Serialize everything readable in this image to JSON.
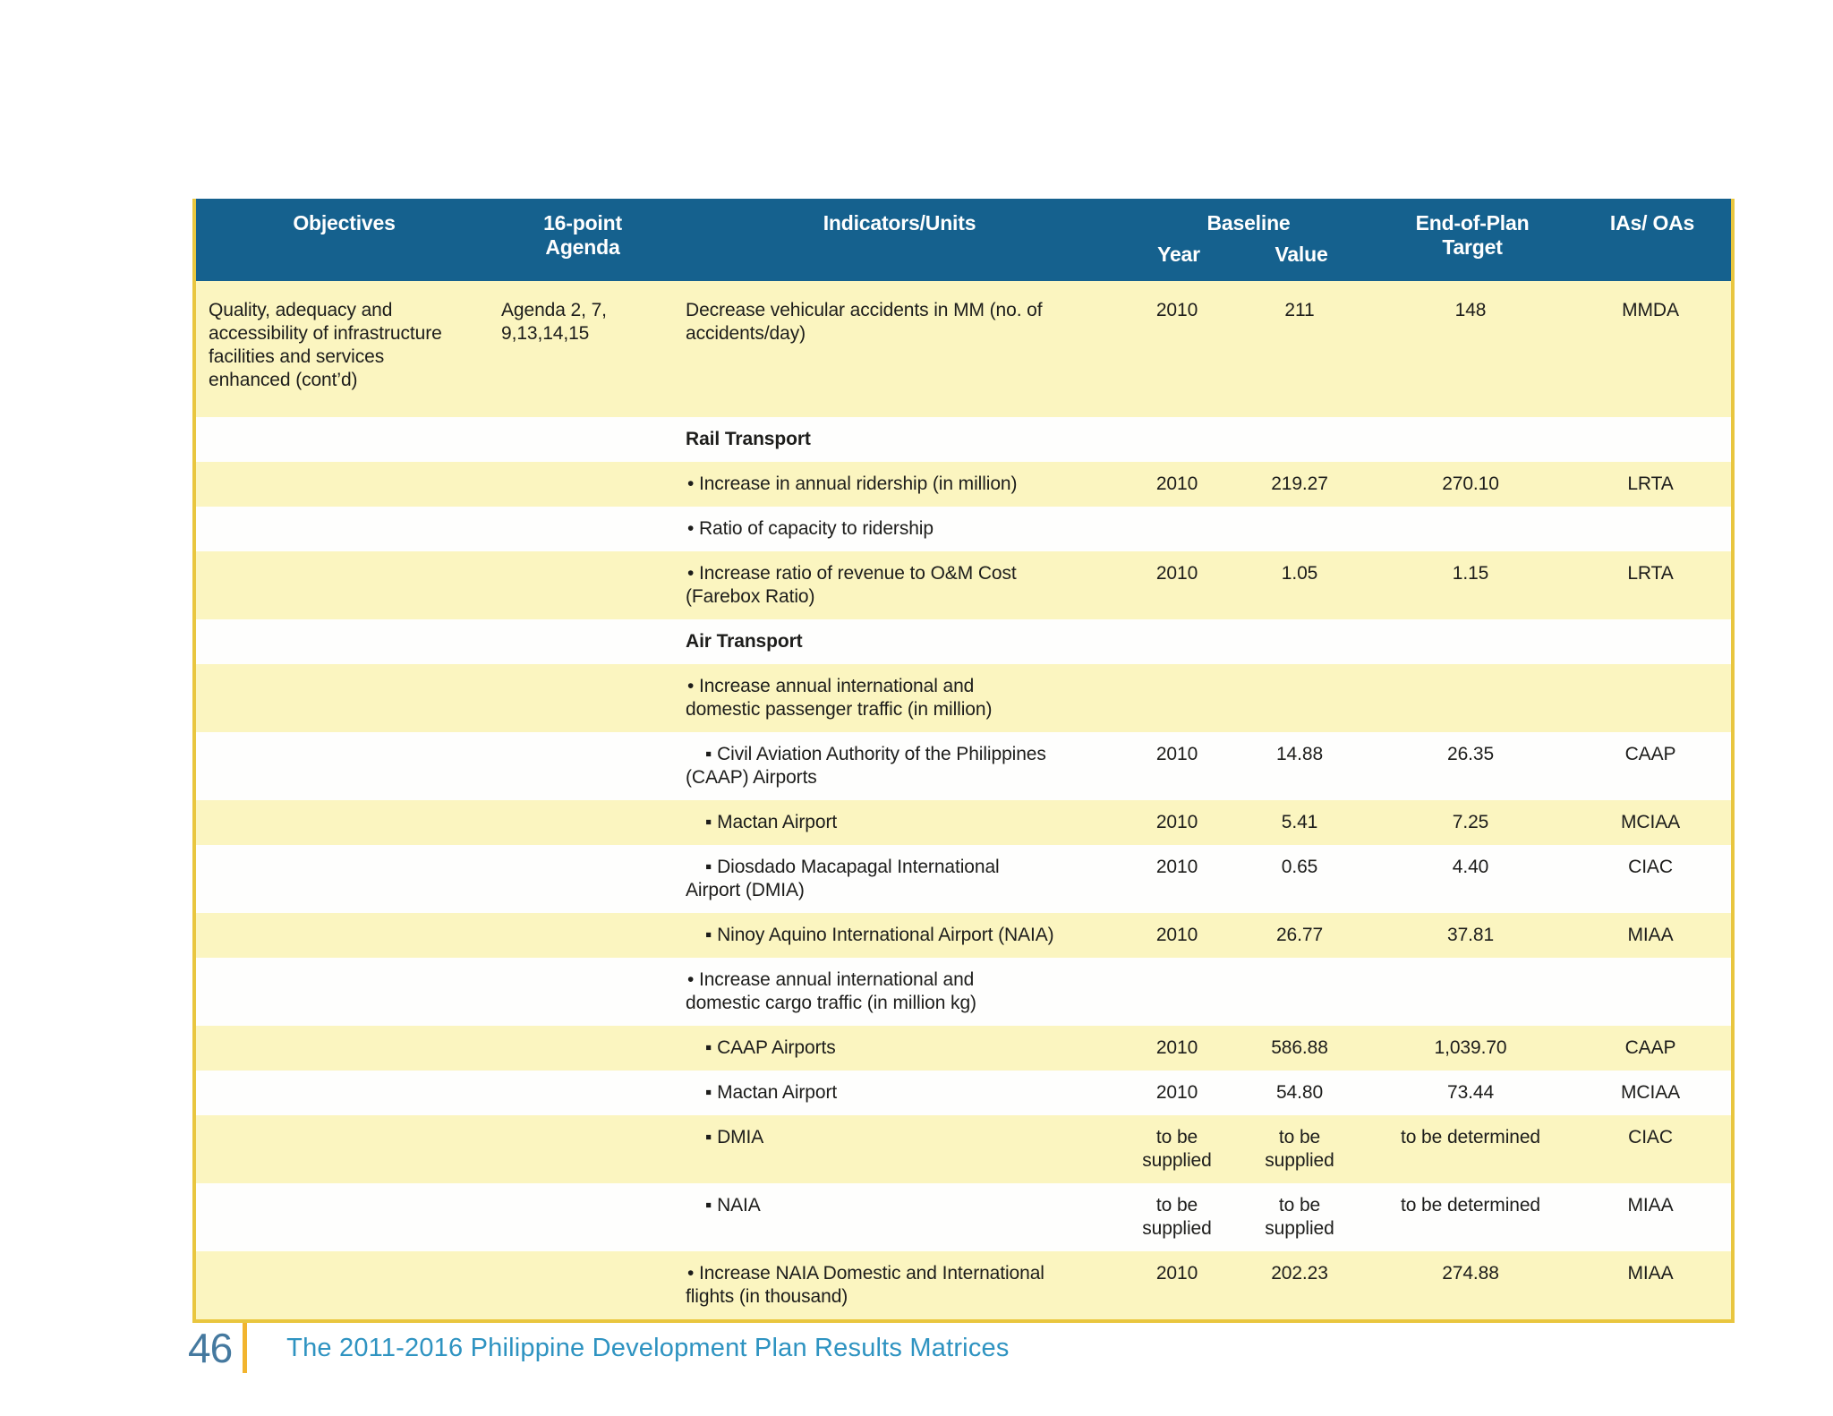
{
  "theme": {
    "header_blue": "#15618E",
    "row_yellow": "#FBF5C0",
    "row_white": "#FEFEFD",
    "border_gold": "#E9C63F",
    "ink": "#1D1D1B",
    "page_number_blue": "#45799F",
    "caption_blue": "#2E93C1",
    "divider_gold": "#F2B42E"
  },
  "footer": {
    "page_number": "46",
    "caption": "The 2011-2016 Philippine Development Plan Results Matrices"
  },
  "table": {
    "header": {
      "objectives": "Objectives",
      "agenda": "16-point\nAgenda",
      "indicators": "Indicators/Units",
      "baseline": "Baseline",
      "year": "Year",
      "value": "Value",
      "target": "End-of-Plan\nTarget",
      "ias": "IAs/ OAs"
    },
    "bullets": {
      "b1": "•",
      "b2": "▪"
    },
    "rows": [
      {
        "objectives": "Quality, adequacy and\naccessibility of infrastructure\nfacilities and services\nenhanced (cont’d)",
        "agenda": "Agenda 2, 7,\n9,13,14,15",
        "level": "plain",
        "indicator": "Decrease vehicular accidents in MM (no. of\naccidents/day)",
        "year": "2010",
        "value": "211",
        "target": "148",
        "ia": "MMDA"
      },
      {
        "level": "section",
        "indicator": "Rail Transport",
        "objectives": "",
        "agenda": "",
        "year": "",
        "value": "",
        "target": "",
        "ia": ""
      },
      {
        "level": "b1",
        "indicator": "Increase in annual ridership (in million)",
        "year": "2010",
        "value": "219.27",
        "target": "270.10",
        "ia": "LRTA"
      },
      {
        "level": "b1",
        "indicator": "Ratio of capacity to ridership",
        "year": "",
        "value": "",
        "target": "",
        "ia": ""
      },
      {
        "level": "b1",
        "indicator": "Increase ratio of revenue to O&M Cost\n(Farebox Ratio)",
        "year": "2010",
        "value": "1.05",
        "target": "1.15",
        "ia": "LRTA"
      },
      {
        "level": "section",
        "indicator": "Air Transport",
        "year": "",
        "value": "",
        "target": "",
        "ia": ""
      },
      {
        "level": "b1",
        "indicator": "Increase annual international and\ndomestic passenger traffic (in million)",
        "year": "",
        "value": "",
        "target": "",
        "ia": ""
      },
      {
        "level": "b2",
        "indicator": "Civil Aviation Authority of the Philippines\n(CAAP) Airports",
        "year": "2010",
        "value": "14.88",
        "target": "26.35",
        "ia": "CAAP"
      },
      {
        "level": "b2",
        "indicator": "Mactan Airport",
        "year": "2010",
        "value": "5.41",
        "target": "7.25",
        "ia": "MCIAA"
      },
      {
        "level": "b2",
        "indicator": "Diosdado Macapagal International\nAirport (DMIA)",
        "year": "2010",
        "value": "0.65",
        "target": "4.40",
        "ia": "CIAC"
      },
      {
        "level": "b2",
        "indicator": "Ninoy Aquino International Airport (NAIA)",
        "year": "2010",
        "value": "26.77",
        "target": "37.81",
        "ia": "MIAA"
      },
      {
        "level": "b1",
        "indicator": "Increase annual international and\ndomestic cargo traffic (in million kg)",
        "year": "",
        "value": "",
        "target": "",
        "ia": ""
      },
      {
        "level": "b2",
        "indicator": "CAAP Airports",
        "year": "2010",
        "value": "586.88",
        "target": "1,039.70",
        "ia": "CAAP"
      },
      {
        "level": "b2",
        "indicator": "Mactan Airport",
        "year": "2010",
        "value": "54.80",
        "target": "73.44",
        "ia": "MCIAA"
      },
      {
        "level": "b2",
        "indicator": "DMIA",
        "year": "to be\nsupplied",
        "value": "to be\nsupplied",
        "target": "to be determined",
        "ia": "CIAC"
      },
      {
        "level": "b2",
        "indicator": "NAIA",
        "year": "to be\nsupplied",
        "value": "to be\nsupplied",
        "target": "to be determined",
        "ia": "MIAA"
      },
      {
        "level": "b1",
        "indicator": "Increase NAIA Domestic and International\nflights (in thousand)",
        "year": "2010",
        "value": "202.23",
        "target": "274.88",
        "ia": "MIAA"
      }
    ]
  }
}
